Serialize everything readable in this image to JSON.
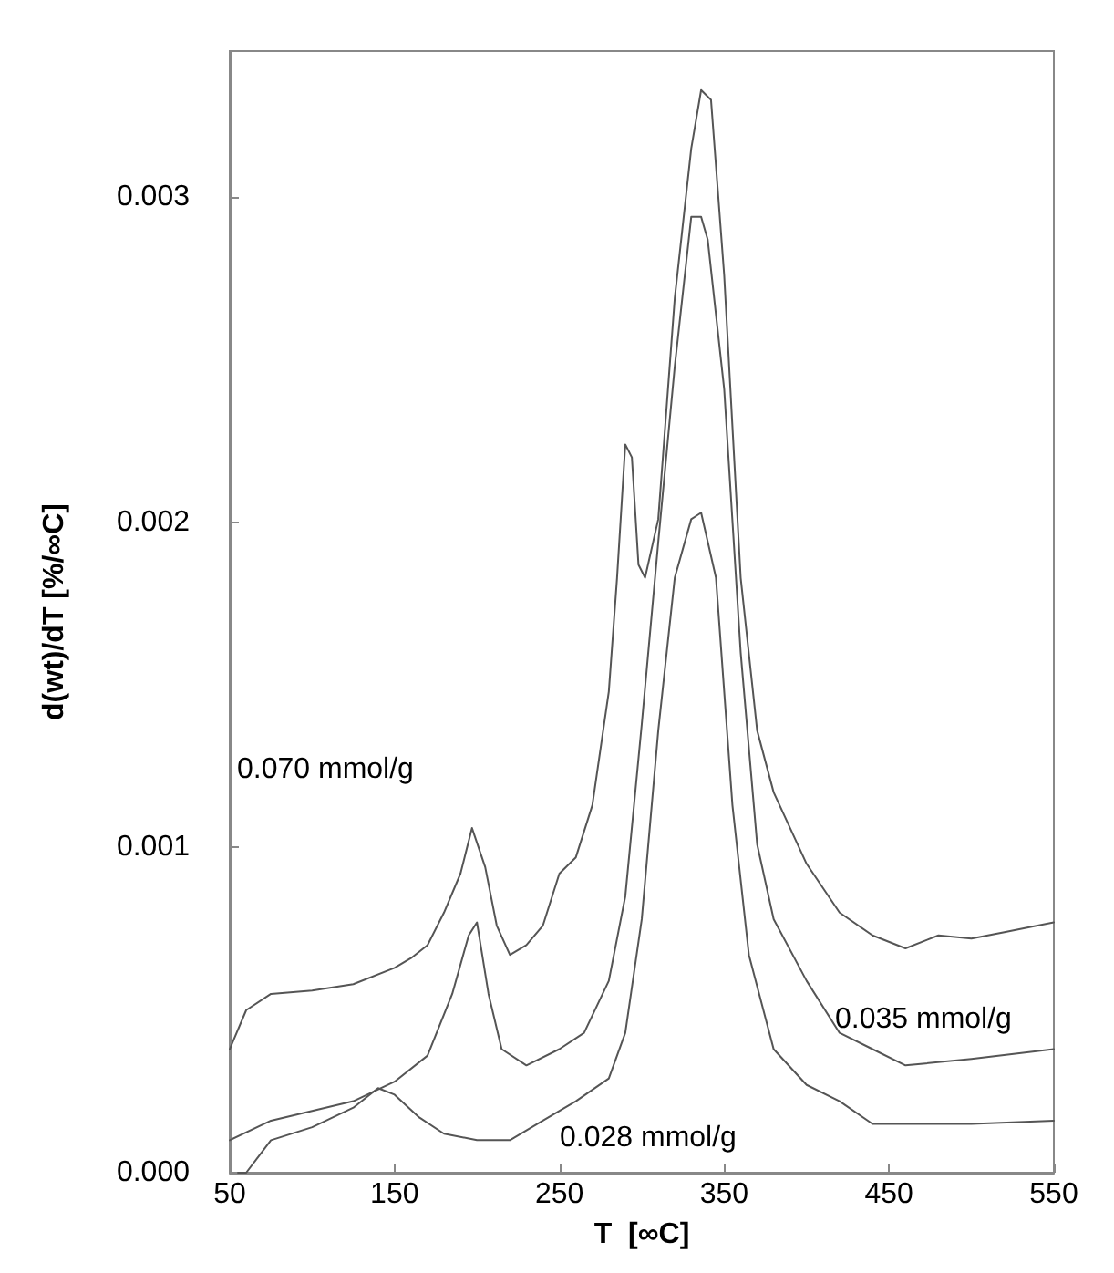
{
  "chart_data": {
    "type": "line",
    "xlabel": "T  [∞C]",
    "ylabel": "d(wt)/dT [%/∞C]",
    "xlim": [
      50,
      550
    ],
    "xticks": [
      50,
      150,
      250,
      350,
      450,
      550
    ],
    "ylim": [
      0,
      0.00345
    ],
    "yticks": [
      {
        "value": 0,
        "label": "0.000"
      },
      {
        "value": 0.001,
        "label": "0.001"
      },
      {
        "value": 0.002,
        "label": "0.002"
      },
      {
        "value": 0.003,
        "label": "0.003"
      }
    ],
    "grid": false,
    "marker": "none",
    "line_style": "solid",
    "series": [
      {
        "color": "#555555",
        "x": [
          50,
          60,
          75,
          100,
          125,
          150,
          160,
          170,
          180,
          190,
          197,
          205,
          212,
          220,
          230,
          240,
          250,
          260,
          270,
          280,
          285,
          290,
          294,
          298,
          302,
          310,
          320,
          330,
          336,
          342,
          350,
          360,
          370,
          380,
          390,
          400,
          420,
          440,
          460,
          480,
          500,
          520,
          550
        ],
        "values": [
          0.00038,
          0.0005,
          0.00055,
          0.00056,
          0.00058,
          0.00063,
          0.00066,
          0.0007,
          0.0008,
          0.00092,
          0.00106,
          0.00094,
          0.00076,
          0.00067,
          0.0007,
          0.00076,
          0.00092,
          0.00097,
          0.00113,
          0.00148,
          0.00183,
          0.00224,
          0.0022,
          0.00187,
          0.00183,
          0.00201,
          0.00269,
          0.00315,
          0.00333,
          0.0033,
          0.00276,
          0.00183,
          0.00136,
          0.00117,
          0.00106,
          0.00095,
          0.0008,
          0.00073,
          0.00069,
          0.00073,
          0.00072,
          0.00074,
          0.00077
        ]
      },
      {
        "color": "#555555",
        "x": [
          50,
          75,
          100,
          125,
          150,
          170,
          185,
          195,
          200,
          207,
          215,
          230,
          250,
          265,
          280,
          290,
          300,
          310,
          320,
          330,
          336,
          340,
          350,
          360,
          370,
          380,
          400,
          420,
          440,
          460,
          500,
          550
        ],
        "values": [
          0.0001,
          0.00016,
          0.00019,
          0.00022,
          0.00028,
          0.00036,
          0.00055,
          0.00073,
          0.00077,
          0.00055,
          0.00038,
          0.00033,
          0.00038,
          0.00043,
          0.00059,
          0.00085,
          0.00138,
          0.00194,
          0.00248,
          0.00294,
          0.00294,
          0.00287,
          0.00241,
          0.0016,
          0.00101,
          0.00078,
          0.00059,
          0.00043,
          0.00038,
          0.00033,
          0.00035,
          0.00038
        ]
      },
      {
        "color": "#555555",
        "x": [
          55,
          60,
          75,
          100,
          125,
          140,
          150,
          165,
          180,
          200,
          220,
          240,
          260,
          280,
          290,
          300,
          310,
          320,
          330,
          336,
          345,
          355,
          365,
          380,
          400,
          420,
          440,
          500,
          550
        ],
        "values": [
          0,
          0,
          0.0001,
          0.00014,
          0.0002,
          0.00026,
          0.00024,
          0.00017,
          0.00012,
          0.0001,
          0.0001,
          0.00016,
          0.00022,
          0.00029,
          0.00043,
          0.00078,
          0.00136,
          0.00183,
          0.00201,
          0.00203,
          0.00183,
          0.00113,
          0.00067,
          0.00038,
          0.00027,
          0.00022,
          0.00015,
          0.00015,
          0.00016
        ]
      }
    ],
    "annotations": [
      "0.070 mmol/g",
      "0.035 mmol/g",
      "0.028 mmol/g"
    ]
  }
}
